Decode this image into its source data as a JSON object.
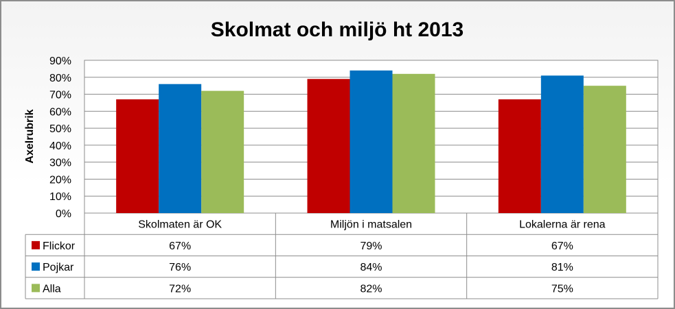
{
  "chart_data": {
    "type": "bar",
    "title": "Skolmat och miljö ht 2013",
    "ylabel": "Axelrubrik",
    "xlabel": "",
    "ylim": [
      0,
      0.9
    ],
    "yticks": [
      "0%",
      "10%",
      "20%",
      "30%",
      "40%",
      "50%",
      "60%",
      "70%",
      "80%",
      "90%"
    ],
    "grid": true,
    "legend_placement": "data-table",
    "categories": [
      "Skolmaten är OK",
      "Miljön i matsalen",
      "Lokalerna är rena"
    ],
    "series": [
      {
        "name": "Flickor",
        "color": "#c00000",
        "values": [
          0.67,
          0.79,
          0.67
        ],
        "labels": [
          "67%",
          "79%",
          "67%"
        ]
      },
      {
        "name": "Pojkar",
        "color": "#0070c0",
        "values": [
          0.76,
          0.84,
          0.81
        ],
        "labels": [
          "76%",
          "84%",
          "81%"
        ]
      },
      {
        "name": "Alla",
        "color": "#9bbb59",
        "values": [
          0.72,
          0.82,
          0.75
        ],
        "labels": [
          "72%",
          "82%",
          "75%"
        ]
      }
    ]
  }
}
